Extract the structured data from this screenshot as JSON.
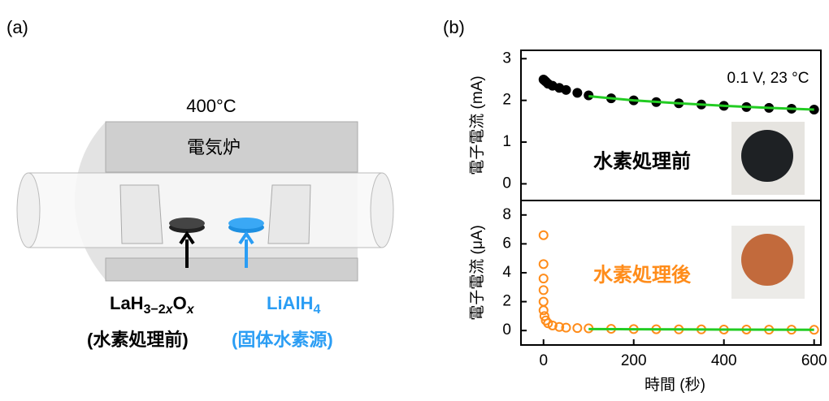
{
  "panel_labels": [
    "(a)",
    "(b)"
  ],
  "diagram": {
    "temperature": "400°C",
    "furnace": "電気炉",
    "sample_label": [
      "LaH",
      "3−2",
      "x",
      "O",
      "x"
    ],
    "sample_note": "(水素処理前)",
    "source_label": [
      "LiAlH",
      "4"
    ],
    "source_note": "(固体水素源)"
  },
  "chart_data": [
    {
      "type": "scatter",
      "ylabel": "電子電流 (mA)",
      "xlim": [
        -50,
        615
      ],
      "ylim": [
        -0.4,
        3.2
      ],
      "yticks": [
        0,
        1,
        2,
        3
      ],
      "annotations": [
        "0.1 V, 23 °C",
        "水素処理前"
      ],
      "series": [
        {
          "type": "scatter",
          "color": "#000000",
          "filled": true,
          "x": [
            0,
            2,
            5,
            10,
            20,
            35,
            50,
            75,
            100,
            150,
            200,
            250,
            300,
            350,
            400,
            450,
            500,
            550,
            600
          ],
          "values": [
            2.5,
            2.48,
            2.45,
            2.4,
            2.35,
            2.3,
            2.25,
            2.18,
            2.12,
            2.05,
            2.0,
            1.96,
            1.93,
            1.9,
            1.87,
            1.84,
            1.82,
            1.8,
            1.78
          ]
        },
        {
          "type": "line",
          "color": "#22cc22",
          "x": [
            100,
            200,
            300,
            400,
            500,
            600
          ],
          "values": [
            2.1,
            2.0,
            1.93,
            1.87,
            1.82,
            1.78
          ]
        }
      ]
    },
    {
      "type": "scatter",
      "ylabel": "電子電流 (μA)",
      "xlabel": "時間 (秒)",
      "xlim": [
        -50,
        615
      ],
      "ylim": [
        -1,
        9
      ],
      "xticks": [
        0,
        200,
        400,
        600
      ],
      "yticks": [
        0,
        2,
        4,
        6,
        8
      ],
      "annotations": [
        "水素処理後"
      ],
      "series": [
        {
          "type": "scatter",
          "color": "#ff8c1a",
          "filled": false,
          "x": [
            0,
            0,
            0,
            0,
            0,
            0,
            2,
            5,
            10,
            20,
            35,
            50,
            75,
            100,
            150,
            200,
            250,
            300,
            350,
            400,
            450,
            500,
            550,
            600
          ],
          "values": [
            6.6,
            4.6,
            3.6,
            2.8,
            2.0,
            1.4,
            1.0,
            0.7,
            0.5,
            0.35,
            0.25,
            0.2,
            0.17,
            0.15,
            0.12,
            0.1,
            0.09,
            0.08,
            0.08,
            0.07,
            0.07,
            0.06,
            0.06,
            0.05
          ]
        },
        {
          "type": "line",
          "color": "#22cc22",
          "x": [
            100,
            200,
            300,
            400,
            500,
            600
          ],
          "values": [
            0.1,
            0.09,
            0.08,
            0.07,
            0.06,
            0.05
          ]
        }
      ]
    }
  ]
}
